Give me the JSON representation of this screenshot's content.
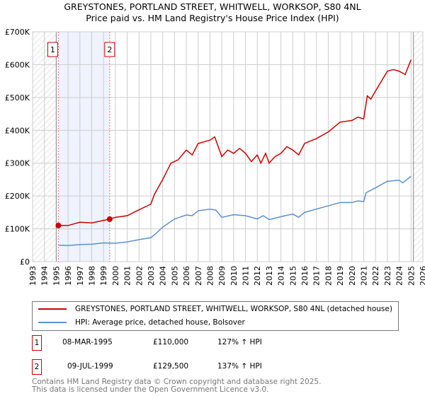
{
  "chart_data": {
    "type": "line",
    "title": "GREYSTONES, PORTLAND STREET, WHITWELL, WORKSOP, S80 4NL",
    "subtitle": "Price paid vs. HM Land Registry's House Price Index (HPI)",
    "xlim": [
      1993,
      2026
    ],
    "ylim": [
      0,
      700000
    ],
    "x_ticks": [
      "1993",
      "1994",
      "1995",
      "1996",
      "1997",
      "1998",
      "1999",
      "2000",
      "2001",
      "2002",
      "2003",
      "2004",
      "2005",
      "2006",
      "2007",
      "2008",
      "2009",
      "2010",
      "2011",
      "2012",
      "2013",
      "2014",
      "2015",
      "2016",
      "2017",
      "2018",
      "2019",
      "2020",
      "2021",
      "2022",
      "2023",
      "2024",
      "2025",
      "2026"
    ],
    "y_ticks": [
      {
        "v": 0,
        "label": "£0"
      },
      {
        "v": 100000,
        "label": "£100K"
      },
      {
        "v": 200000,
        "label": "£200K"
      },
      {
        "v": 300000,
        "label": "£300K"
      },
      {
        "v": 400000,
        "label": "£400K"
      },
      {
        "v": 500000,
        "label": "£500K"
      },
      {
        "v": 600000,
        "label": "£600K"
      },
      {
        "v": 700000,
        "label": "£700K"
      }
    ],
    "grid": true,
    "series": [
      {
        "name": "GREYSTONES, PORTLAND STREET, WHITWELL, WORKSOP, S80 4NL (detached house)",
        "color": "#cc0000",
        "x": [
          1995.2,
          1996,
          1997,
          1998,
          1999.5,
          2000,
          2001,
          2002,
          2003,
          2003.3,
          2004,
          2004.7,
          2005.3,
          2006,
          2006.5,
          2007,
          2008,
          2008.4,
          2009,
          2009.5,
          2010,
          2010.5,
          2011,
          2011.5,
          2012,
          2012.3,
          2012.7,
          2013,
          2013.5,
          2014,
          2014.5,
          2015,
          2015.5,
          2016,
          2017,
          2018,
          2018.5,
          2019,
          2020,
          2020.5,
          2021,
          2021.3,
          2021.6,
          2022,
          2022.5,
          2023,
          2023.5,
          2024,
          2024.5,
          2025
        ],
        "y": [
          110000,
          110000,
          120000,
          118000,
          129500,
          135000,
          140000,
          158000,
          175000,
          205000,
          250000,
          300000,
          310000,
          340000,
          325000,
          360000,
          370000,
          380000,
          320000,
          340000,
          330000,
          345000,
          330000,
          305000,
          325000,
          300000,
          330000,
          300000,
          320000,
          330000,
          350000,
          340000,
          325000,
          360000,
          375000,
          395000,
          410000,
          425000,
          430000,
          440000,
          435000,
          505000,
          495000,
          520000,
          550000,
          580000,
          585000,
          580000,
          570000,
          615000
        ]
      },
      {
        "name": "HPI: Average price, detached house, Bolsover",
        "color": "#5b8fd4",
        "x": [
          1995.2,
          1996,
          1997,
          1998,
          1999,
          2000,
          2001,
          2002,
          2003,
          2003.5,
          2004,
          2005,
          2006,
          2006.5,
          2007,
          2008,
          2008.5,
          2009,
          2010,
          2011,
          2012,
          2012.5,
          2013,
          2014,
          2015,
          2015.5,
          2016,
          2017,
          2018,
          2019,
          2020,
          2020.5,
          2021,
          2021.2,
          2022,
          2023,
          2024,
          2024.3,
          2025
        ],
        "y": [
          50000,
          49000,
          52000,
          53000,
          57000,
          56000,
          60000,
          67000,
          73000,
          88000,
          105000,
          130000,
          142000,
          140000,
          155000,
          160000,
          157000,
          135000,
          143000,
          140000,
          130000,
          140000,
          128000,
          137000,
          145000,
          135000,
          150000,
          160000,
          170000,
          180000,
          180000,
          185000,
          183000,
          210000,
          225000,
          245000,
          248000,
          240000,
          260000
        ]
      }
    ],
    "sales": [
      {
        "id": "1",
        "x": 1995.18,
        "price": 110000,
        "date": "08-MAR-1995",
        "price_label": "£110,000",
        "hpi": "127% ↑ HPI"
      },
      {
        "id": "2",
        "x": 1999.52,
        "price": 129500,
        "date": "09-JUL-1999",
        "price_label": "£129,500",
        "hpi": "137% ↑ HPI"
      }
    ],
    "legend_position": "below"
  },
  "footer": {
    "line1": "Contains HM Land Registry data © Crown copyright and database right 2025.",
    "line2": "This data is licensed under the Open Government Licence v3.0."
  }
}
